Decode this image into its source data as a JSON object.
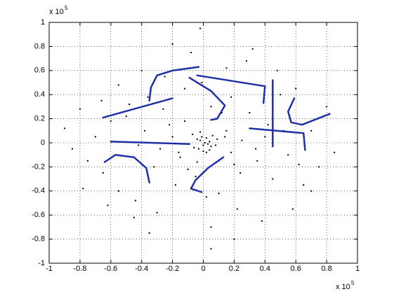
{
  "chart_data": {
    "type": "scatter",
    "x_multiplier": "x 10",
    "x_exponent": "5",
    "y_multiplier": "x 10",
    "y_exponent": "5",
    "xlim": [
      -1,
      1
    ],
    "ylim": [
      -1,
      1
    ],
    "xticks": [
      -1,
      -0.8,
      -0.6,
      -0.4,
      -0.2,
      0,
      0.2,
      0.4,
      0.6,
      0.8,
      1
    ],
    "yticks": [
      -1,
      -0.8,
      -0.6,
      -0.4,
      -0.2,
      0,
      0.2,
      0.4,
      0.6,
      0.8,
      1
    ],
    "grid": true,
    "color": "#000000",
    "curve_color": "#1f2fa8",
    "x": [
      0.01,
      -0.02,
      0.03,
      -0.04,
      0.05,
      0.0,
      -0.01,
      0.02,
      -0.03,
      0.04,
      0.06,
      -0.06,
      0.08,
      -0.07,
      0.02,
      -0.02,
      0.09,
      -0.09,
      0.0,
      0.04,
      0.15,
      -0.15,
      0.2,
      -0.22,
      0.12,
      -0.1,
      0.25,
      -0.28,
      0.05,
      -0.05,
      0.3,
      -0.32,
      0.18,
      -0.18,
      0.35,
      -0.38,
      0.1,
      -0.12,
      0.4,
      -0.42,
      0.45,
      -0.48,
      0.22,
      -0.25,
      0.5,
      -0.55,
      0.15,
      -0.3,
      0.55,
      -0.6,
      0.6,
      -0.65,
      0.28,
      -0.4,
      0.65,
      -0.7,
      0.05,
      -0.08,
      0.7,
      -0.75,
      0.75,
      -0.8,
      0.38,
      -0.45,
      0.8,
      -0.85,
      0.2,
      -0.2,
      0.85,
      -0.9,
      -0.02,
      0.05,
      0.48,
      -0.55,
      0.58,
      -0.62,
      0.32,
      -0.35,
      0.7,
      -0.78,
      0.1,
      -0.12,
      0.14,
      -0.16,
      0.08,
      -0.04,
      0.18,
      -0.2,
      0.24,
      -0.26,
      0.34,
      -0.36,
      0.42,
      -0.44,
      0.52,
      -0.5,
      0.62,
      -0.66,
      0.02,
      -0.01
    ],
    "values": [
      0.0,
      0.02,
      -0.01,
      0.03,
      -0.03,
      -0.02,
      0.05,
      0.04,
      -0.05,
      0.01,
      0.06,
      -0.04,
      -0.02,
      0.07,
      -0.08,
      0.09,
      0.03,
      -0.01,
      -0.07,
      -0.06,
      0.1,
      -0.12,
      -0.18,
      0.15,
      0.25,
      -0.22,
      0.02,
      -0.05,
      0.3,
      -0.28,
      0.25,
      -0.2,
      0.38,
      -0.35,
      -0.15,
      0.1,
      -0.42,
      0.45,
      0.05,
      -0.02,
      -0.3,
      0.32,
      -0.55,
      0.55,
      0.4,
      -0.4,
      0.62,
      -0.58,
      -0.1,
      0.18,
      0.45,
      -0.25,
      0.68,
      0.6,
      -0.35,
      0.05,
      -0.7,
      0.75,
      0.1,
      -0.15,
      -0.2,
      0.28,
      -0.65,
      -0.62,
      0.3,
      -0.05,
      -0.8,
      0.82,
      -0.08,
      0.12,
      0.95,
      -0.88,
      0.6,
      0.48,
      -0.55,
      -0.52,
      0.78,
      -0.75,
      -0.4,
      -0.38,
      -0.15,
      0.18,
      0.05,
      -0.08,
      0.2,
      -0.16,
      -0.08,
      0.05,
      -0.25,
      0.28,
      -0.05,
      0.38,
      0.15,
      -0.48,
      0.1,
      0.22,
      -0.18,
      0.35,
      -0.45,
      0.5
    ],
    "curves": [
      {
        "x": [
          -0.65,
          -0.2
        ],
        "y": [
          0.21,
          0.37
        ]
      },
      {
        "x": [
          -0.35,
          -0.34,
          -0.3,
          -0.2,
          -0.03
        ],
        "y": [
          0.35,
          0.46,
          0.56,
          0.6,
          0.63
        ]
      },
      {
        "x": [
          -0.04,
          0.4,
          0.39
        ],
        "y": [
          0.56,
          0.47,
          0.33
        ]
      },
      {
        "x": [
          -0.09,
          0.05,
          0.14,
          0.09,
          0.05
        ],
        "y": [
          0.54,
          0.43,
          0.31,
          0.2,
          0.19
        ]
      },
      {
        "x": [
          0.45,
          0.45
        ],
        "y": [
          0.52,
          -0.03
        ]
      },
      {
        "x": [
          0.3,
          0.65,
          0.66
        ],
        "y": [
          0.12,
          0.08,
          -0.06
        ]
      },
      {
        "x": [
          0.59,
          0.55,
          0.57,
          0.64,
          0.82
        ],
        "y": [
          0.37,
          0.26,
          0.17,
          0.15,
          0.24
        ]
      },
      {
        "x": [
          -0.6,
          -0.09
        ],
        "y": [
          0.01,
          -0.01
        ]
      },
      {
        "x": [
          -0.64,
          -0.57,
          -0.45,
          -0.37,
          -0.35
        ],
        "y": [
          -0.16,
          -0.1,
          -0.12,
          -0.21,
          -0.33
        ]
      },
      {
        "x": [
          0.13,
          0.03,
          -0.05,
          -0.08,
          -0.01
        ],
        "y": [
          -0.12,
          -0.21,
          -0.31,
          -0.38,
          -0.41
        ]
      }
    ]
  }
}
